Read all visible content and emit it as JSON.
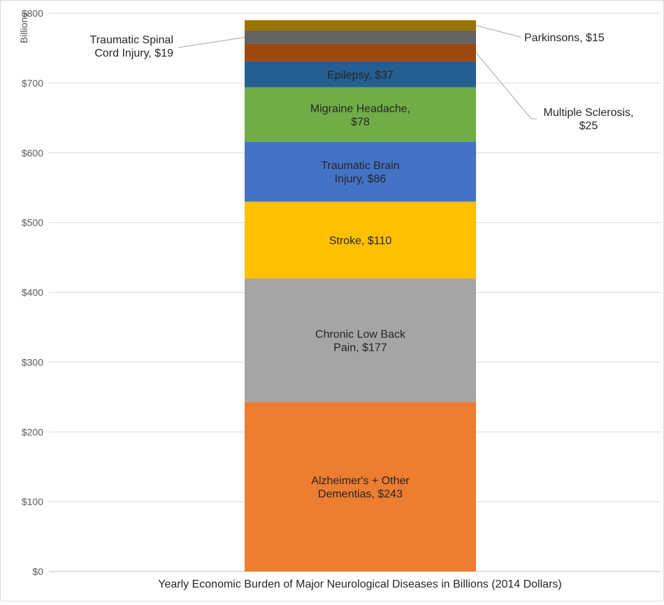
{
  "chart_data": {
    "type": "bar",
    "stacked": true,
    "categories": [
      "Yearly Economic Burden of Major Neurological Diseases in Billions (2014 Dollars)"
    ],
    "ylabel": "Billions",
    "ylim": [
      0,
      800
    ],
    "yticks": [
      "$0",
      "$100",
      "$200",
      "$300",
      "$400",
      "$500",
      "$600",
      "$700",
      "$800"
    ],
    "grid": true,
    "series": [
      {
        "name": "Alzheimer's + Other Dementias",
        "value": 243,
        "label": [
          "Alzheimer's + Other",
          "Dementias, $243"
        ],
        "color": "#ED7D31",
        "label_position": "inside"
      },
      {
        "name": "Chronic Low Back Pain",
        "value": 177,
        "label": [
          "Chronic Low Back",
          "Pain, $177"
        ],
        "color": "#A5A5A5",
        "label_position": "inside"
      },
      {
        "name": "Stroke",
        "value": 110,
        "label": [
          "Stroke, $110"
        ],
        "color": "#FFC000",
        "label_position": "inside"
      },
      {
        "name": "Traumatic Brain Injury",
        "value": 86,
        "label": [
          "Traumatic Brain",
          "Injury, $86"
        ],
        "color": "#4472C4",
        "label_position": "inside"
      },
      {
        "name": "Migraine Headache",
        "value": 78,
        "label": [
          "Migraine Headache,",
          "$78"
        ],
        "color": "#70AD47",
        "label_position": "inside"
      },
      {
        "name": "Epilepsy",
        "value": 37,
        "label": [
          "Epilepsy, $37"
        ],
        "color": "#255E91",
        "label_position": "inside"
      },
      {
        "name": "Multiple Sclerosis",
        "value": 25,
        "label": [
          "Multiple Sclerosis,",
          "$25"
        ],
        "color": "#9E480E",
        "label_position": "right-callout"
      },
      {
        "name": "Traumatic Spinal Cord Injury",
        "value": 19,
        "label": [
          "Traumatic Spinal",
          "Cord Injury, $19"
        ],
        "color": "#636363",
        "label_position": "left-callout"
      },
      {
        "name": "Parkinsons",
        "value": 15,
        "label": [
          "Parkinsons, $15"
        ],
        "color": "#997300",
        "label_position": "right-callout"
      }
    ]
  }
}
